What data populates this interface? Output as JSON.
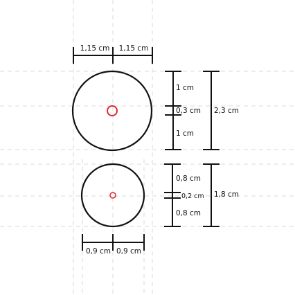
{
  "large_circle": {
    "label_half_width_left": "1,15 cm",
    "label_half_width_right": "1,15 cm",
    "label_upper_segment": "1 cm",
    "label_center_segment": "0,3 cm",
    "label_lower_segment": "1 cm",
    "label_total_height": "2,3 cm"
  },
  "small_circle": {
    "label_upper_segment": "0,8 cm",
    "label_center_segment": "0,2 cm",
    "label_lower_segment": "0,8 cm",
    "label_total_height": "1,8 cm",
    "label_half_width_left": "0,9 cm",
    "label_half_width_right": "0,9 cm"
  },
  "colors": {
    "line": "#111111",
    "center_mark": "#e3262e",
    "guide": "#d9d9d9"
  }
}
